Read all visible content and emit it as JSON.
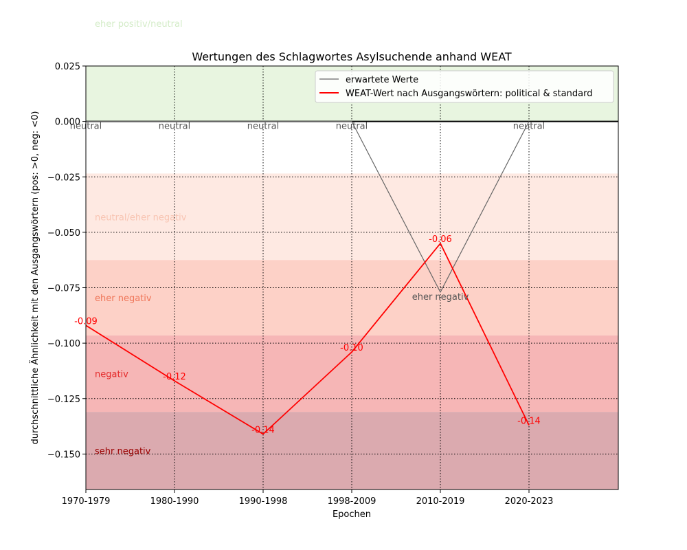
{
  "chart_data": {
    "type": "line",
    "title": "Wertungen des Schlagwortes Asylsuchende anhand WEAT",
    "xlabel": "Epochen",
    "ylabel": "durchschnittliche Ähnlichkeit mit den Ausgangswörtern (pos: >0, neg: <0)",
    "categories": [
      "1970-1979",
      "1980-1990",
      "1990-1998",
      "1998-2009",
      "2010-2019",
      "2020-2023"
    ],
    "ylim": [
      -0.166,
      0.025
    ],
    "yticks": [
      0.025,
      0.0,
      -0.025,
      -0.05,
      -0.075,
      -0.1,
      -0.125,
      -0.15
    ],
    "ytick_labels": [
      "0.025",
      "0.000",
      "−0.025",
      "−0.050",
      "−0.075",
      "−0.100",
      "−0.125",
      "−0.150"
    ],
    "grid": true,
    "legend_position": "top-right",
    "bands": [
      {
        "label": "eher positiv/neutral",
        "from": 0.0,
        "to": 0.025,
        "color": "#e8f5e0",
        "text_color": "#d4ecc8"
      },
      {
        "label": "neutral/eher negativ",
        "from": -0.0625,
        "to": -0.0235,
        "color": "#fee9e2",
        "text_color": "#f8c4b2"
      },
      {
        "label": "eher negativ",
        "from": -0.0965,
        "to": -0.0625,
        "color": "#fdd1c7",
        "text_color": "#ef7558"
      },
      {
        "label": "negativ",
        "from": -0.131,
        "to": -0.0965,
        "color": "#f6b6b6",
        "text_color": "#e42a2a"
      },
      {
        "label": "sehr negativ",
        "from": -0.166,
        "to": -0.131,
        "color": "#dbaaaf",
        "text_color": "#9b0000"
      }
    ],
    "series": [
      {
        "name": "erwartete Werte",
        "color": "#666666",
        "values": [
          0.0,
          0.0,
          0.0,
          0.0,
          -0.077,
          0.0
        ],
        "point_labels": [
          "neutral",
          "neutral",
          "neutral",
          "neutral",
          "eher negativ",
          "neutral"
        ]
      },
      {
        "name": "WEAT-Wert nach Ausgangswörtern: political & standard",
        "color": "#ff0000",
        "values": [
          -0.092,
          -0.117,
          -0.141,
          -0.104,
          -0.055,
          -0.137
        ],
        "point_labels": [
          "-0.09",
          "-0.12",
          "-0.14",
          "-0.10",
          "-0.06",
          "-0.14"
        ]
      }
    ]
  }
}
